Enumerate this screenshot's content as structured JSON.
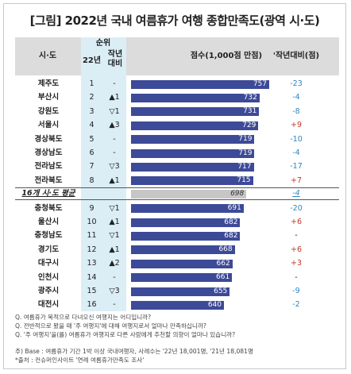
{
  "title": "[그림] 2022년 국내 여름휴가 여행 종합만족도(광역 시·도)",
  "headers": {
    "region": "시·도",
    "rank_group": "순위",
    "rank22": "22년",
    "prev_rank": "작년\n대비",
    "score": "점수(1,000점 만점)",
    "change": "'작년대비(점)"
  },
  "colors": {
    "bar": "#3d4a97",
    "avg_bar": "#c6c6c6",
    "up": "#c0392b",
    "down": "#2e86c1",
    "rank_bg": "#dbeef6",
    "header_bg": "#dcdcdc"
  },
  "rows": [
    {
      "region": "제주도",
      "rank": "1",
      "move": "-",
      "score": "757",
      "change": "-23",
      "dir": "down"
    },
    {
      "region": "부산시",
      "rank": "2",
      "move": "▲1",
      "score": "732",
      "change": "-4",
      "dir": "down"
    },
    {
      "region": "강원도",
      "rank": "3",
      "move": "▽1",
      "score": "731",
      "change": "-8",
      "dir": "down"
    },
    {
      "region": "서울시",
      "rank": "4",
      "move": "▲3",
      "score": "729",
      "change": "+9",
      "dir": "up"
    },
    {
      "region": "경상북도",
      "rank": "5",
      "move": "-",
      "score": "719",
      "change": "-10",
      "dir": "down"
    },
    {
      "region": "경상남도",
      "rank": "6",
      "move": "-",
      "score": "719",
      "change": "-4",
      "dir": "down"
    },
    {
      "region": "전라남도",
      "rank": "7",
      "move": "▽3",
      "score": "717",
      "change": "-17",
      "dir": "down"
    },
    {
      "region": "전라북도",
      "rank": "8",
      "move": "▲1",
      "score": "715",
      "change": "+7",
      "dir": "up"
    },
    {
      "region": "16개 시·도 평균",
      "rank": "",
      "move": "",
      "score": "698",
      "change": "-4",
      "dir": "down",
      "avg": true
    },
    {
      "region": "충청북도",
      "rank": "9",
      "move": "▽1",
      "score": "691",
      "change": "-20",
      "dir": "down"
    },
    {
      "region": "울산시",
      "rank": "10",
      "move": "▲1",
      "score": "682",
      "change": "+6",
      "dir": "up"
    },
    {
      "region": "충청남도",
      "rank": "11",
      "move": "▽1",
      "score": "682",
      "change": "-",
      "dir": "none"
    },
    {
      "region": "경기도",
      "rank": "12",
      "move": "▲1",
      "score": "668",
      "change": "+6",
      "dir": "up"
    },
    {
      "region": "대구시",
      "rank": "13",
      "move": "▲2",
      "score": "662",
      "change": "+3",
      "dir": "up"
    },
    {
      "region": "인천시",
      "rank": "14",
      "move": "-",
      "score": "661",
      "change": "-",
      "dir": "none"
    },
    {
      "region": "광주시",
      "rank": "15",
      "move": "▽3",
      "score": "655",
      "change": "-9",
      "dir": "down"
    },
    {
      "region": "대전시",
      "rank": "16",
      "move": "-",
      "score": "640",
      "change": "-2",
      "dir": "down"
    }
  ],
  "notes": [
    "Q. 여름휴가 목적으로 다녀오신 여행지는 어디입니까?",
    "Q. 전반적으로 봤을 때 '주 여행지'에 대해 여행지로서 얼마나 만족하십니까?",
    "Q. '주 여행지'을(를) 여름휴가 여행지로 다른 사람에게 추천할 의향이 얼마나 있습니까?",
    "주) Base : 여름휴가 기간 1박 이상 국내여행자, 사례수는 '22년 18,001명, '21년 18,081명",
    "*출처 : 컨슈머인사이트 '연례 여름휴가만족도 조사'"
  ],
  "chart_data": {
    "type": "bar",
    "orientation": "horizontal",
    "title": "[그림] 2022년 국내 여름휴가 여행 종합만족도(광역 시·도)",
    "categories": [
      "제주도",
      "부산시",
      "강원도",
      "서울시",
      "경상북도",
      "경상남도",
      "전라남도",
      "전라북도",
      "16개 시·도 평균",
      "충청북도",
      "울산시",
      "충청남도",
      "경기도",
      "대구시",
      "인천시",
      "광주시",
      "대전시"
    ],
    "values": [
      757,
      732,
      731,
      729,
      719,
      719,
      717,
      715,
      698,
      691,
      682,
      682,
      668,
      662,
      661,
      655,
      640
    ],
    "ylabel": "점수(1,000점 만점)",
    "xlim": [
      0,
      1000
    ],
    "grid": false
  }
}
